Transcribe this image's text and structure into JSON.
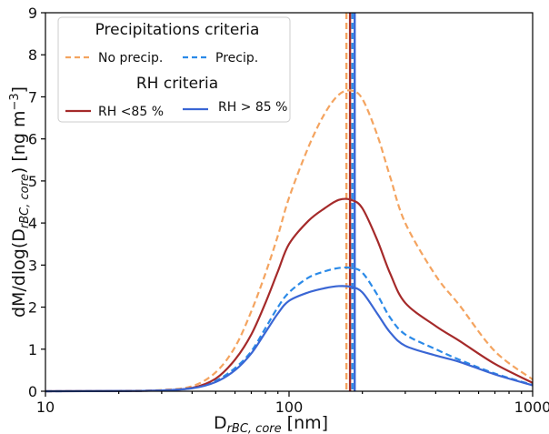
{
  "chart_data": {
    "type": "line",
    "xscale": "log",
    "xlim": [
      10,
      1000
    ],
    "ylim": [
      0,
      9
    ],
    "xticks": [
      10,
      100,
      1000
    ],
    "xtick_labels": [
      "10",
      "100",
      "1000"
    ],
    "yticks": [
      0,
      1,
      2,
      3,
      4,
      5,
      6,
      7,
      8,
      9
    ],
    "ytick_labels": [
      "0",
      "1",
      "2",
      "3",
      "4",
      "5",
      "6",
      "7",
      "8",
      "9"
    ],
    "xlabel": {
      "main": "D",
      "sub": "rBC, core",
      "unit": " [nm]"
    },
    "ylabel": {
      "pre": "dM/dlog(D",
      "sub": "rBC, core",
      "post": ") [ng m",
      "sup": "−3",
      "end": "]"
    },
    "grid": false,
    "legend": {
      "placement": "top-left",
      "groups": [
        {
          "title": "Precipitations criteria",
          "entries": [
            "No precip.",
            "Precip."
          ]
        },
        {
          "title": "RH criteria",
          "entries": [
            "RH <85 %",
            "RH > 85 %"
          ]
        }
      ]
    },
    "series": [
      {
        "name": "No precip.",
        "color": "#f4a460",
        "style": "dashed",
        "x": [
          10,
          20,
          30,
          40,
          50,
          60,
          70,
          80,
          90,
          100,
          120,
          140,
          160,
          180,
          200,
          230,
          260,
          300,
          400,
          500,
          700,
          1000
        ],
        "y": [
          0,
          0.01,
          0.03,
          0.12,
          0.45,
          1.05,
          1.9,
          2.8,
          3.7,
          4.6,
          5.8,
          6.6,
          7.05,
          7.15,
          6.95,
          6.1,
          5.1,
          4.0,
          2.75,
          2.05,
          0.95,
          0.28
        ]
      },
      {
        "name": "Precip.",
        "color": "#2b8ae8",
        "style": "dashed",
        "x": [
          10,
          20,
          30,
          40,
          50,
          60,
          70,
          80,
          90,
          100,
          120,
          140,
          160,
          180,
          200,
          230,
          260,
          300,
          400,
          500,
          700,
          1000
        ],
        "y": [
          0,
          0.005,
          0.02,
          0.08,
          0.25,
          0.55,
          0.95,
          1.5,
          2.0,
          2.35,
          2.7,
          2.85,
          2.93,
          2.93,
          2.82,
          2.3,
          1.75,
          1.35,
          1.0,
          0.75,
          0.42,
          0.15
        ]
      },
      {
        "name": "RH <85 %",
        "color": "#a52a2a",
        "style": "solid",
        "x": [
          10,
          20,
          30,
          40,
          50,
          60,
          70,
          80,
          90,
          100,
          120,
          140,
          160,
          180,
          200,
          230,
          260,
          300,
          400,
          500,
          700,
          1000
        ],
        "y": [
          0,
          0.005,
          0.02,
          0.08,
          0.3,
          0.75,
          1.35,
          2.1,
          2.85,
          3.5,
          4.05,
          4.35,
          4.55,
          4.55,
          4.35,
          3.6,
          2.8,
          2.1,
          1.55,
          1.2,
          0.65,
          0.2
        ]
      },
      {
        "name": "RH > 85 %",
        "color": "#3a66d4",
        "style": "solid",
        "x": [
          10,
          20,
          30,
          40,
          50,
          60,
          70,
          80,
          90,
          100,
          120,
          140,
          160,
          180,
          200,
          230,
          260,
          300,
          400,
          500,
          700,
          1000
        ],
        "y": [
          0,
          0.005,
          0.02,
          0.07,
          0.22,
          0.5,
          0.9,
          1.4,
          1.85,
          2.15,
          2.35,
          2.45,
          2.5,
          2.48,
          2.35,
          1.85,
          1.4,
          1.08,
          0.85,
          0.7,
          0.4,
          0.14
        ]
      }
    ],
    "vlines": [
      {
        "x": 172,
        "color": "#f4a460",
        "style": "dashed"
      },
      {
        "x": 178,
        "color": "#a52a2a",
        "style": "solid"
      },
      {
        "x": 182,
        "color": "#2b8ae8",
        "style": "dashed"
      },
      {
        "x": 186,
        "color": "#3a66d4",
        "style": "solid"
      }
    ]
  }
}
